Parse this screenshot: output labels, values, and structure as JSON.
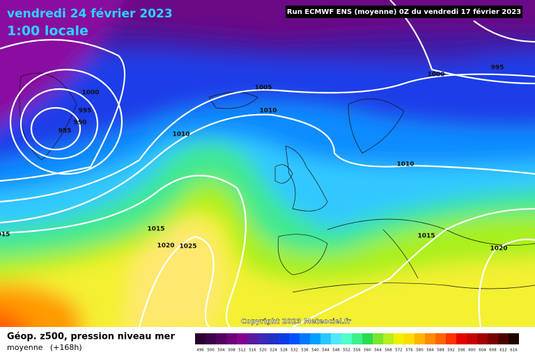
{
  "header": {
    "title": "vendredi 24 février 2023",
    "time": "1:00 locale",
    "run": "Run ECMWF ENS (moyenne) 0Z du vendredi 17 février 2023"
  },
  "isobar_labels": [
    "1000",
    "995",
    "990",
    "985",
    "1005",
    "1010",
    "1010",
    "995",
    "1000",
    "1010",
    "1015",
    "1020",
    "1025",
    "1015",
    "1020",
    "015"
  ],
  "copyright": "Copyright 2023 Meteociel.fr",
  "footer": {
    "title": "Géop. z500, pression niveau mer",
    "subtitle": "moyenne   (+168h)"
  },
  "legend": {
    "labels": [
      496,
      500,
      504,
      508,
      512,
      516,
      520,
      524,
      528,
      532,
      536,
      540,
      544,
      548,
      552,
      556,
      560,
      564,
      568,
      572,
      576,
      580,
      584,
      588,
      592,
      596,
      600,
      604,
      608,
      612,
      616
    ],
    "colors": [
      "#2a0030",
      "#3c0048",
      "#55005f",
      "#6e0078",
      "#87008f",
      "#5a1aa0",
      "#3c28b4",
      "#1e32c8",
      "#0a3ce6",
      "#0050ff",
      "#0078ff",
      "#00a0ff",
      "#28c8ff",
      "#50e6ff",
      "#50ffc8",
      "#3cf08c",
      "#28dc50",
      "#78e632",
      "#b4f01e",
      "#f0f000",
      "#ffdc00",
      "#ffb400",
      "#ff8c00",
      "#ff6400",
      "#ff3200",
      "#e60000",
      "#c80000",
      "#a00000",
      "#780000",
      "#500000",
      "#200000"
    ]
  }
}
